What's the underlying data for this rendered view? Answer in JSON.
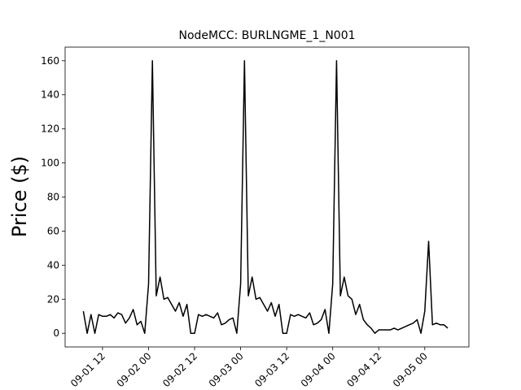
{
  "chart_data": {
    "type": "line",
    "title": "NodeMCC: BURLNGME_1_N001",
    "ylabel": "Price ($)",
    "series": [
      {
        "name": "price",
        "color": "#000000",
        "x": [
          7,
          8,
          9,
          10,
          11,
          12,
          13,
          14,
          15,
          16,
          17,
          18,
          19,
          20,
          21,
          22,
          23,
          24,
          25,
          26,
          27,
          28,
          29,
          30,
          31,
          32,
          33,
          34,
          35,
          36,
          37,
          38,
          39,
          40,
          41,
          42,
          43,
          44,
          45,
          46,
          47,
          48,
          49,
          50,
          51,
          52,
          53,
          54,
          55,
          56,
          57,
          58,
          59,
          60,
          61,
          62,
          63,
          64,
          65,
          66,
          67,
          68,
          69,
          70,
          71,
          72,
          73,
          74,
          75,
          76,
          77,
          78,
          79,
          80,
          81,
          82,
          83,
          84,
          85,
          86,
          87,
          88,
          89,
          90,
          91,
          92,
          93,
          94,
          95,
          96,
          97,
          98,
          99,
          100,
          101,
          102
        ],
        "values": [
          13,
          0,
          11,
          0,
          11,
          10,
          10,
          11,
          9,
          12,
          11,
          6,
          9,
          14,
          5,
          7,
          0,
          29,
          160,
          22,
          33,
          20,
          21,
          17,
          13,
          18,
          10,
          17,
          0,
          0,
          11,
          10,
          11,
          10,
          9,
          12,
          5,
          6,
          8,
          9,
          0,
          29,
          160,
          22,
          33,
          20,
          21,
          17,
          13,
          18,
          10,
          17,
          0,
          0,
          11,
          10,
          11,
          10,
          9,
          12,
          5,
          6,
          8,
          14,
          0,
          29,
          160,
          22,
          33,
          22,
          20,
          11,
          17,
          8,
          5,
          3,
          0,
          2,
          2,
          2,
          2,
          3,
          2,
          3,
          4,
          5,
          6,
          8,
          0,
          13,
          54,
          5,
          6,
          5,
          5,
          3
        ]
      }
    ],
    "xlim": [
      2.25,
      107.5
    ],
    "xticks": [
      {
        "value": 12,
        "label": "09-01 12"
      },
      {
        "value": 24,
        "label": "09-02 00"
      },
      {
        "value": 36,
        "label": "09-02 12"
      },
      {
        "value": 48,
        "label": "09-03 00"
      },
      {
        "value": 60,
        "label": "09-03 12"
      },
      {
        "value": 72,
        "label": "09-04 00"
      },
      {
        "value": 84,
        "label": "09-04 12"
      },
      {
        "value": 96,
        "label": "09-05 00"
      }
    ],
    "ylim": [
      -8,
      168
    ],
    "yticks": [
      0,
      20,
      40,
      60,
      80,
      100,
      120,
      140,
      160
    ]
  }
}
